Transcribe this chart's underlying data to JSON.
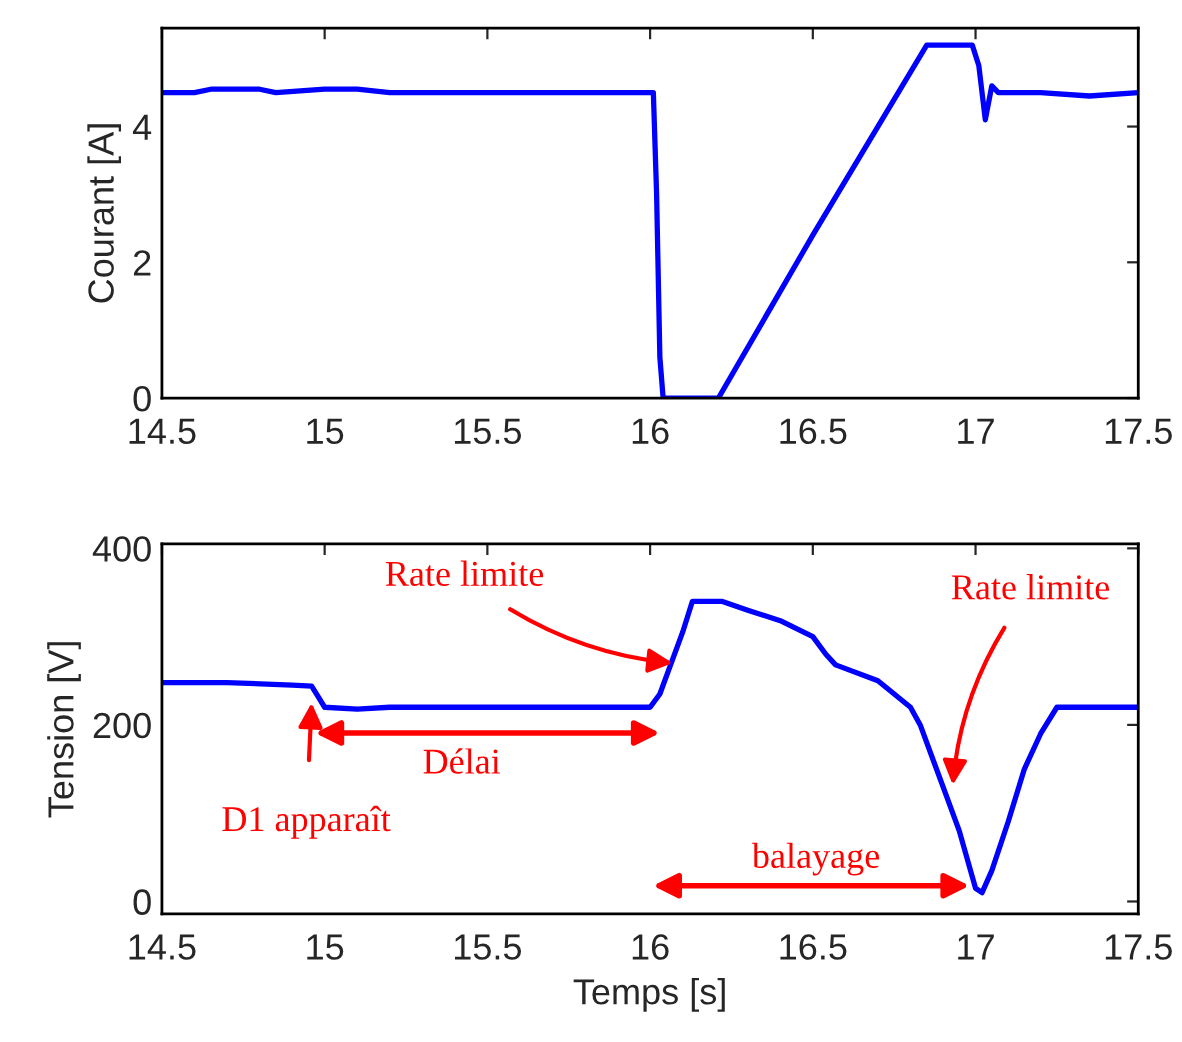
{
  "chart_data": [
    {
      "type": "line",
      "ylabel": "Courant [A]",
      "xlim": [
        14.5,
        17.5
      ],
      "xticks": [
        14.5,
        15,
        15.5,
        16,
        16.5,
        17,
        17.5
      ],
      "ylim": [
        0,
        5.45
      ],
      "yticks": [
        0,
        2,
        4
      ],
      "grid": false,
      "legend": false,
      "series": [
        {
          "color": "#0000ff",
          "x": [
            14.5,
            14.6,
            14.65,
            14.8,
            14.85,
            15.0,
            15.1,
            15.2,
            15.3,
            15.6,
            15.7,
            16.0,
            16.01,
            16.02,
            16.03,
            16.04,
            16.21,
            16.5,
            16.85,
            16.99,
            17.01,
            17.03,
            17.05,
            17.07,
            17.2,
            17.35,
            17.5
          ],
          "values": [
            4.5,
            4.5,
            4.55,
            4.55,
            4.5,
            4.55,
            4.55,
            4.5,
            4.5,
            4.5,
            4.5,
            4.5,
            4.5,
            3.0,
            0.6,
            0.0,
            0.0,
            2.4,
            5.2,
            5.2,
            4.9,
            4.1,
            4.6,
            4.5,
            4.5,
            4.45,
            4.5
          ]
        }
      ]
    },
    {
      "type": "line",
      "xlabel": "Temps [s]",
      "ylabel": "Tension [V]",
      "xlim": [
        14.5,
        17.5
      ],
      "xticks": [
        14.5,
        15,
        15.5,
        16,
        16.5,
        17,
        17.5
      ],
      "ylim": [
        -14,
        405
      ],
      "yticks": [
        0,
        200,
        400
      ],
      "grid": false,
      "legend": false,
      "series": [
        {
          "color": "#0000ff",
          "x": [
            14.5,
            14.7,
            14.9,
            14.96,
            14.98,
            15.0,
            15.1,
            15.2,
            16.0,
            16.03,
            16.07,
            16.1,
            16.13,
            16.22,
            16.3,
            16.4,
            16.5,
            16.54,
            16.57,
            16.7,
            16.8,
            16.83,
            16.9,
            16.95,
            17.0,
            17.02,
            17.05,
            17.1,
            17.15,
            17.2,
            17.25,
            17.5
          ],
          "values": [
            248,
            248,
            245,
            244,
            232,
            220,
            218,
            220,
            220,
            235,
            275,
            305,
            340,
            340,
            330,
            318,
            300,
            280,
            268,
            250,
            220,
            200,
            130,
            80,
            15,
            10,
            35,
            90,
            150,
            190,
            220,
            220
          ]
        }
      ],
      "annotations": [
        {
          "text": "Rate limite",
          "x": 16.07,
          "y": 270
        },
        {
          "text": "Rate limite",
          "x": 16.93,
          "y": 132
        },
        {
          "text": "D1 apparaît",
          "x": 14.96,
          "y": 225
        },
        "Délai",
        "balayage"
      ]
    }
  ]
}
